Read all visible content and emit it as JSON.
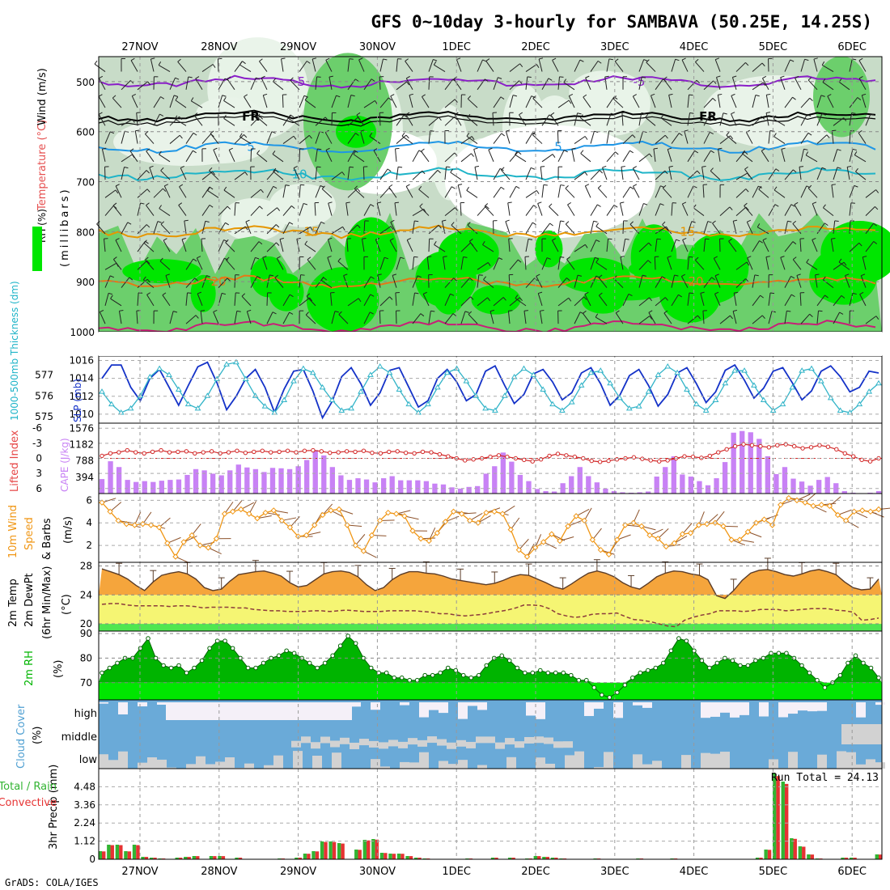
{
  "title": "GFS 0~10day 3-hourly for SAMBAVA (50.25E, 14.25S)",
  "footer": "GrADS: COLA/IGES",
  "colors": {
    "rh_green": "#00e600",
    "rh_mid": "#6ccf6c",
    "rh_light": "#c8dcc8",
    "rh_pale": "#e9f3e9",
    "temp_violet": "#8a1ec8",
    "temp_blue": "#1e96e6",
    "temp_cyan": "#1eb4c8",
    "temp_orange": "#e69600",
    "temp_dorange": "#e67814",
    "temp_magenta": "#c81e78",
    "slp_line": "#1432c8",
    "thick_line": "#32b4c8",
    "cape_bar": "#c882f5",
    "li_line": "#d22828",
    "wind_line": "#f09614",
    "barb": "#8c5028",
    "temp_fill": "#f5a53c",
    "dew_fill": "#f5f573",
    "low_fill": "#50e650",
    "rh2m_dark": "#00b400",
    "rh2m_light": "#00e600",
    "cloud_blue": "#6aaad8",
    "cloud_white": "#f5f0f8",
    "cloud_grey": "#d2d2d2",
    "precip_green": "#32b432",
    "precip_red": "#e63232"
  },
  "chart_data": {
    "type": "meteogram",
    "x_labels": [
      "27NOV",
      "28NOV",
      "29NOV",
      "30NOV",
      "1DEC",
      "2DEC",
      "3DEC",
      "4DEC",
      "5DEC",
      "6DEC"
    ],
    "panels": [
      {
        "type": "heatmap+contour",
        "ylabel": [
          "RH (%)",
          "Temperature (°C)",
          "Wind (m/s)"
        ],
        "ylabel2": "(millibars)",
        "y_ticks": [
          500,
          600,
          700,
          800,
          900,
          1000
        ],
        "ylim": [
          450,
          1000
        ],
        "rh_levels": [
          30,
          50,
          70,
          90
        ],
        "contour_labels": [
          "-5",
          "FR",
          "5",
          "10",
          "15",
          "20"
        ]
      },
      {
        "type": "line",
        "ylabel_left": "1000-500mb Thickness (dm)",
        "ylabel_right": "SLP (mb)",
        "left_ticks": [
          575,
          576,
          577
        ],
        "right_ticks": [
          1010,
          1012,
          1014,
          1016
        ],
        "slp": [
          1014.0,
          1015.5,
          1015.5,
          1013.0,
          1011.5,
          1014.0,
          1015.0,
          1013.0,
          1011.0,
          1013.2,
          1015.3,
          1015.8,
          1013.5,
          1010.5,
          1012.0,
          1014.0,
          1015.0,
          1013.0,
          1010.2,
          1012.8,
          1014.8,
          1015.0,
          1012.6,
          1009.6,
          1011.4,
          1014.2,
          1015.2,
          1013.4,
          1011.0,
          1012.4,
          1014.9,
          1015.2,
          1013.0,
          1010.8,
          1011.5,
          1014.0,
          1015.0,
          1013.6,
          1011.5,
          1012.2,
          1014.8,
          1015.4,
          1013.2,
          1011.2,
          1012.2,
          1014.5,
          1015.0,
          1013.6,
          1011.6,
          1012.4,
          1014.6,
          1015.2,
          1013.4,
          1011.0,
          1012.1,
          1014.3,
          1015.0,
          1013.2,
          1010.9,
          1012.2,
          1014.6,
          1015.2,
          1013.4,
          1011.3,
          1012.5,
          1014.9,
          1015.5,
          1013.8,
          1011.8,
          1012.9,
          1014.8,
          1015.2,
          1013.5,
          1011.6,
          1012.6,
          1014.8,
          1015.4,
          1014.2,
          1012.5,
          1013.0,
          1014.8,
          1014.6
        ],
        "thickness": [
          576.2,
          575.6,
          575.2,
          575.4,
          576.0,
          576.9,
          577.3,
          577.0,
          576.3,
          575.6,
          575.4,
          576.0,
          576.8,
          577.5,
          577.6,
          576.8,
          576.0,
          575.5,
          575.2,
          575.8,
          576.7,
          577.3,
          577.1,
          576.4,
          575.8,
          575.3,
          575.4,
          576.2,
          577.0,
          577.4,
          577.1,
          576.3,
          575.6,
          575.2,
          575.6,
          576.4,
          577.1,
          577.3,
          576.7,
          576.0,
          575.4,
          575.3,
          576.0,
          576.9,
          577.3,
          577.0,
          576.3,
          575.6,
          575.3,
          575.7,
          576.5,
          577.1,
          577.2,
          576.6,
          575.9,
          575.4,
          575.5,
          576.2,
          577.0,
          577.4,
          577.1,
          576.3,
          575.6,
          575.3,
          575.8,
          576.6,
          577.2,
          577.2,
          576.5,
          575.8,
          575.3,
          575.6,
          576.4,
          577.2,
          577.3,
          576.7,
          575.9,
          575.3,
          575.2,
          575.6,
          576.2,
          576.6
        ]
      },
      {
        "type": "bar+line",
        "ylabel_left": "Lifted Index",
        "ylabel_right": "CAPE (J/kg)",
        "left_ticks": [
          -6,
          -3,
          0,
          3,
          6
        ],
        "cape_ticks": [
          394,
          788,
          1182,
          1576
        ],
        "cape": [
          350,
          780,
          640,
          330,
          280,
          300,
          280,
          310,
          330,
          340,
          450,
          590,
          560,
          480,
          440,
          560,
          700,
          630,
          590,
          520,
          620,
          610,
          590,
          660,
          810,
          1050,
          920,
          640,
          440,
          330,
          370,
          340,
          270,
          370,
          420,
          320,
          320,
          320,
          300,
          240,
          220,
          150,
          120,
          160,
          180,
          480,
          660,
          990,
          770,
          450,
          300,
          110,
          60,
          50,
          250,
          420,
          640,
          420,
          270,
          120,
          60,
          30,
          20,
          30,
          50,
          410,
          640,
          900,
          460,
          410,
          300,
          200,
          370,
          760,
          1470,
          1510,
          1480,
          1320,
          900,
          470,
          640,
          360,
          290,
          190,
          330,
          400,
          250,
          60,
          20,
          10,
          20,
          60
        ],
        "lifted_index": [
          -0.5,
          -1.0,
          -1.2,
          -1.6,
          -1.2,
          -1.0,
          -1.3,
          -1.6,
          -1.2,
          -1.3,
          -1.4,
          -1.0,
          -1.2,
          -1.4,
          -1.0,
          -1.2,
          -1.5,
          -1.1,
          -1.3,
          -1.5,
          -1.2,
          -1.3,
          -1.5,
          -1.2,
          -1.5,
          -1.6,
          -1.4,
          -1.1,
          -1.2,
          -1.4,
          -1.3,
          -1.5,
          -1.1,
          -1.0,
          -1.3,
          -1.4,
          -1.1,
          -1.0,
          -1.3,
          -1.2,
          -0.8,
          -0.4,
          0.0,
          0.4,
          0.2,
          0.0,
          -0.3,
          -0.6,
          -0.3,
          0.0,
          0.3,
          0.6,
          0.2,
          -0.5,
          -0.9,
          -0.6,
          -0.3,
          0.0,
          0.5,
          0.7,
          0.5,
          0.2,
          0.0,
          -0.2,
          0.1,
          0.4,
          0.6,
          0.4,
          0.0,
          -0.4,
          -0.3,
          -0.1,
          -0.5,
          -1.2,
          -1.8,
          -2.4,
          -2.8,
          -2.6,
          -2.4,
          -2.2,
          -2.6,
          -2.8,
          -2.4,
          -2.0,
          -2.2,
          -2.6,
          -2.3,
          -1.8,
          -1.0,
          -0.4,
          0.3,
          0.6,
          0.0
        ]
      },
      {
        "type": "line+barbs",
        "ylabel": "10m Wind Speed & Barbs (m/s)",
        "y_ticks": [
          2,
          4,
          6
        ],
        "values": [
          5.8,
          5.0,
          4.2,
          3.9,
          3.8,
          3.9,
          3.8,
          3.6,
          2.2,
          1.0,
          2.3,
          2.9,
          2.0,
          1.8,
          2.6,
          4.8,
          5.0,
          5.2,
          4.8,
          4.4,
          4.9,
          5.1,
          4.2,
          3.6,
          2.8,
          2.9,
          3.8,
          4.7,
          5.1,
          5.2,
          3.8,
          2.0,
          1.5,
          2.9,
          4.2,
          4.9,
          4.8,
          4.6,
          3.3,
          2.6,
          2.4,
          3.1,
          4.1,
          5.0,
          4.8,
          4.2,
          4.0,
          4.9,
          5.0,
          4.8,
          3.4,
          1.6,
          1.0,
          1.8,
          2.3,
          3.0,
          2.4,
          3.7,
          4.6,
          4.2,
          2.5,
          1.6,
          1.2,
          2.5,
          3.8,
          4.0,
          3.7,
          2.9,
          2.6,
          1.9,
          2.2,
          3.0,
          3.1,
          3.8,
          3.9,
          4.0,
          3.7,
          2.5,
          2.5,
          3.2,
          4.0,
          4.3,
          3.8,
          5.6,
          6.2,
          6.0,
          5.8,
          5.5,
          5.6,
          5.5,
          4.7,
          4.2,
          5.0,
          5.1,
          5.0,
          5.2
        ]
      },
      {
        "type": "area+line",
        "ylabel": [
          "2m Temp",
          "2m DewPt",
          "(6hr Min/Max)",
          "(°C)"
        ],
        "y_ticks": [
          20,
          24,
          28
        ],
        "ylim": [
          19,
          28.5
        ],
        "temp": [
          27.6,
          27.2,
          26.8,
          26.2,
          25.3,
          24.6,
          25.8,
          26.7,
          27.0,
          27.2,
          26.9,
          26.2,
          25.0,
          24.6,
          24.8,
          25.9,
          26.8,
          27.0,
          27.2,
          27.3,
          27.0,
          26.6,
          25.7,
          25.1,
          25.3,
          26.1,
          26.9,
          27.2,
          27.3,
          27.1,
          26.5,
          25.4,
          24.6,
          25.0,
          26.1,
          26.8,
          27.2,
          27.2,
          27.0,
          26.9,
          26.6,
          26.2,
          26.0,
          25.8,
          25.6,
          25.4,
          25.6,
          26.0,
          26.5,
          26.8,
          26.7,
          26.2,
          25.7,
          25.1,
          24.8,
          25.5,
          26.3,
          27.0,
          27.3,
          27.0,
          26.5,
          25.7,
          25.1,
          24.8,
          25.6,
          26.5,
          27.0,
          27.3,
          27.2,
          26.9,
          26.7,
          26.1,
          23.9,
          23.5,
          24.6,
          26.0,
          27.0,
          27.4,
          27.5,
          27.2,
          26.8,
          26.6,
          26.9,
          27.3,
          27.5,
          27.2,
          26.8,
          25.8,
          25.0,
          24.7,
          24.8,
          26.2
        ],
        "dewpoint": [
          22.7,
          22.8,
          22.8,
          22.6,
          22.5,
          22.5,
          22.5,
          22.5,
          22.4,
          22.5,
          22.5,
          22.4,
          22.2,
          22.3,
          22.3,
          22.3,
          22.2,
          22.2,
          22.0,
          21.9,
          21.8,
          21.8,
          21.7,
          21.7,
          21.7,
          21.8,
          21.8,
          21.7,
          21.8,
          21.9,
          21.8,
          21.7,
          21.7,
          21.7,
          21.8,
          21.8,
          21.8,
          21.8,
          21.7,
          21.6,
          21.4,
          21.4,
          21.2,
          21.1,
          21.2,
          21.3,
          21.5,
          21.7,
          21.9,
          22.2,
          22.6,
          22.6,
          22.5,
          22.1,
          21.4,
          21.1,
          20.9,
          21.0,
          21.3,
          21.4,
          21.4,
          21.5,
          21.0,
          20.6,
          20.5,
          20.3,
          20.0,
          19.7,
          19.6,
          20.5,
          20.9,
          21.2,
          21.4,
          21.8,
          21.8,
          21.8,
          21.7,
          21.8,
          22.0,
          22.0,
          22.0,
          21.8,
          21.9,
          22.0,
          22.1,
          22.1,
          22.1,
          21.9,
          21.8,
          21.6,
          20.5,
          20.6,
          20.8
        ]
      },
      {
        "type": "area",
        "ylabel": [
          "2m RH",
          "(%)"
        ],
        "y_ticks": [
          70,
          80,
          90
        ],
        "ylim": [
          63,
          91
        ],
        "values": [
          74,
          76,
          78,
          80,
          80,
          84,
          88,
          80,
          77,
          76,
          77,
          74,
          76,
          79,
          84,
          87,
          87,
          84,
          80,
          76,
          76,
          78,
          80,
          81,
          83,
          82,
          80,
          78,
          76,
          78,
          81,
          85,
          89,
          86,
          80,
          76,
          74,
          74,
          72,
          72,
          71,
          71,
          73,
          73,
          74,
          76,
          75,
          73,
          72,
          73,
          77,
          80,
          81,
          79,
          76,
          74,
          74,
          75,
          74,
          74,
          74,
          73,
          71,
          71,
          68,
          65,
          64,
          66,
          69,
          72,
          74,
          75,
          76,
          78,
          83,
          88,
          87,
          83,
          79,
          76,
          78,
          80,
          79,
          77,
          77,
          79,
          80,
          82,
          82,
          82,
          80,
          77,
          74,
          71,
          68,
          70,
          73,
          78,
          81,
          78,
          76,
          72
        ]
      },
      {
        "type": "area",
        "ylabel": [
          "Cloud Cover",
          "(%)"
        ],
        "row_labels": [
          "high",
          "middle",
          "low"
        ]
      },
      {
        "type": "bar",
        "ylabel_left": [
          "Total / Rain",
          "Convective"
        ],
        "ylabel": "3hr Precip (mm)",
        "y_ticks": [
          0,
          1.12,
          2.24,
          3.36,
          4.48
        ],
        "ylim": [
          0,
          5.6
        ],
        "annotation": "Run Total = 24.13",
        "values": [
          0.5,
          0.9,
          0.9,
          0.5,
          0.9,
          0.15,
          0.1,
          0.05,
          0,
          0.1,
          0.15,
          0.2,
          0,
          0.2,
          0.2,
          0,
          0.1,
          0,
          0,
          0,
          0,
          0.05,
          0,
          0.1,
          0.35,
          0.5,
          1.1,
          1.1,
          1.0,
          0,
          0.6,
          1.2,
          1.25,
          0.4,
          0.35,
          0.35,
          0.2,
          0.1,
          0.05,
          0,
          0,
          0,
          0,
          0.05,
          0,
          0,
          0.1,
          0,
          0.1,
          0,
          0.05,
          0.2,
          0.15,
          0.1,
          0.05,
          0,
          0,
          0,
          0.05,
          0,
          0,
          0,
          0,
          0.05,
          0,
          0,
          0,
          0.05,
          0,
          0,
          0,
          0,
          0,
          0,
          0,
          0,
          0,
          0.1,
          0.6,
          5.3,
          4.8,
          1.3,
          0.8,
          0.3,
          0.05,
          0,
          0,
          0.1,
          0.1,
          0,
          0,
          0.3
        ]
      }
    ]
  }
}
